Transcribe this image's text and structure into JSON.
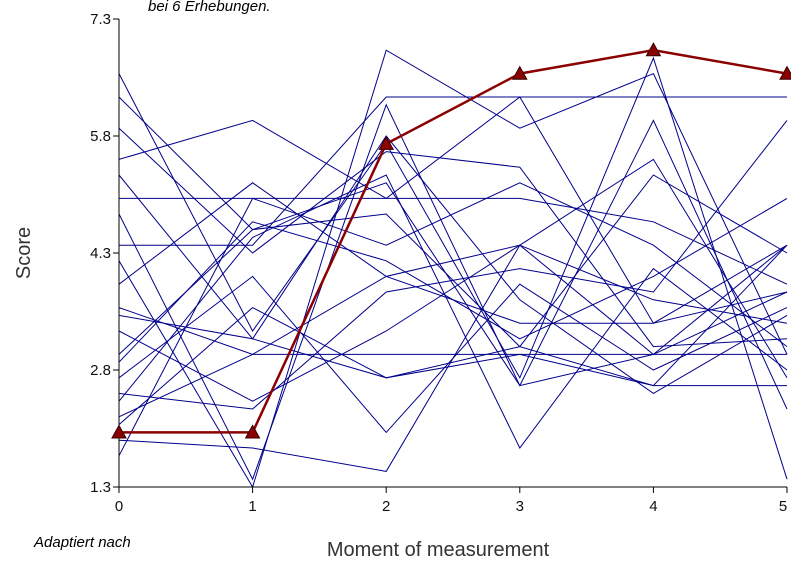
{
  "captions": {
    "top_note": "bei 6 Erhebungen.",
    "bottom_note": "Adaptiert nach"
  },
  "colors": {
    "background": "#ffffff",
    "individual_lines": "#00008b",
    "mean_line": "#8b0000",
    "axis": "#000000"
  },
  "chart_data": {
    "type": "line",
    "title": "",
    "xlabel": "Moment of measurement",
    "ylabel": "Score",
    "x": [
      0,
      1,
      2,
      3,
      4,
      5
    ],
    "x_ticks": [
      "0",
      "1",
      "2",
      "3",
      "4",
      "5"
    ],
    "y_ticks": [
      "1.3",
      "2.8",
      "4.3",
      "5.8",
      "7.3"
    ],
    "y_tick_values": [
      1.3,
      2.8,
      4.3,
      5.8,
      7.3
    ],
    "xlim": [
      0,
      5
    ],
    "ylim": [
      1.3,
      7.3
    ],
    "grid": false,
    "legend": "none",
    "highlighted_series": {
      "marker": "triangle",
      "values": [
        2.0,
        2.0,
        5.7,
        6.6,
        6.9,
        6.6
      ]
    },
    "background_series": [
      [
        6.6,
        3.3,
        5.7,
        2.7,
        6.8,
        1.4
      ],
      [
        6.3,
        4.6,
        4.8,
        3.1,
        5.3,
        4.3
      ],
      [
        5.9,
        4.3,
        5.6,
        5.4,
        3.1,
        3.2
      ],
      [
        5.5,
        6.0,
        5.0,
        6.3,
        3.4,
        3.8
      ],
      [
        5.3,
        3.2,
        2.7,
        3.0,
        2.6,
        4.4
      ],
      [
        5.0,
        5.0,
        4.4,
        5.2,
        4.4,
        3.1
      ],
      [
        4.8,
        1.4,
        6.2,
        2.6,
        6.0,
        2.3
      ],
      [
        4.4,
        4.4,
        6.3,
        6.3,
        6.3,
        6.3
      ],
      [
        4.2,
        1.3,
        6.9,
        5.9,
        6.6,
        3.0
      ],
      [
        3.9,
        5.2,
        4.0,
        4.4,
        3.0,
        3.8
      ],
      [
        3.6,
        3.0,
        3.0,
        3.0,
        3.0,
        3.0
      ],
      [
        3.5,
        3.2,
        5.8,
        3.7,
        2.5,
        3.5
      ],
      [
        3.3,
        2.4,
        3.3,
        4.4,
        5.5,
        2.7
      ],
      [
        3.0,
        4.6,
        5.2,
        2.6,
        3.0,
        4.4
      ],
      [
        2.9,
        4.7,
        4.2,
        3.2,
        4.0,
        5.0
      ],
      [
        2.7,
        4.0,
        2.0,
        3.9,
        2.8,
        3.6
      ],
      [
        2.5,
        2.3,
        3.8,
        4.1,
        3.8,
        6.0
      ],
      [
        2.4,
        4.5,
        5.3,
        1.8,
        4.1,
        2.8
      ],
      [
        2.2,
        3.0,
        4.0,
        3.4,
        3.4,
        4.4
      ],
      [
        1.9,
        1.8,
        1.5,
        4.4,
        3.7,
        3.4
      ],
      [
        1.7,
        5.0,
        5.0,
        5.0,
        4.7,
        3.9
      ],
      [
        2.1,
        3.6,
        2.7,
        3.1,
        2.6,
        2.6
      ]
    ]
  }
}
